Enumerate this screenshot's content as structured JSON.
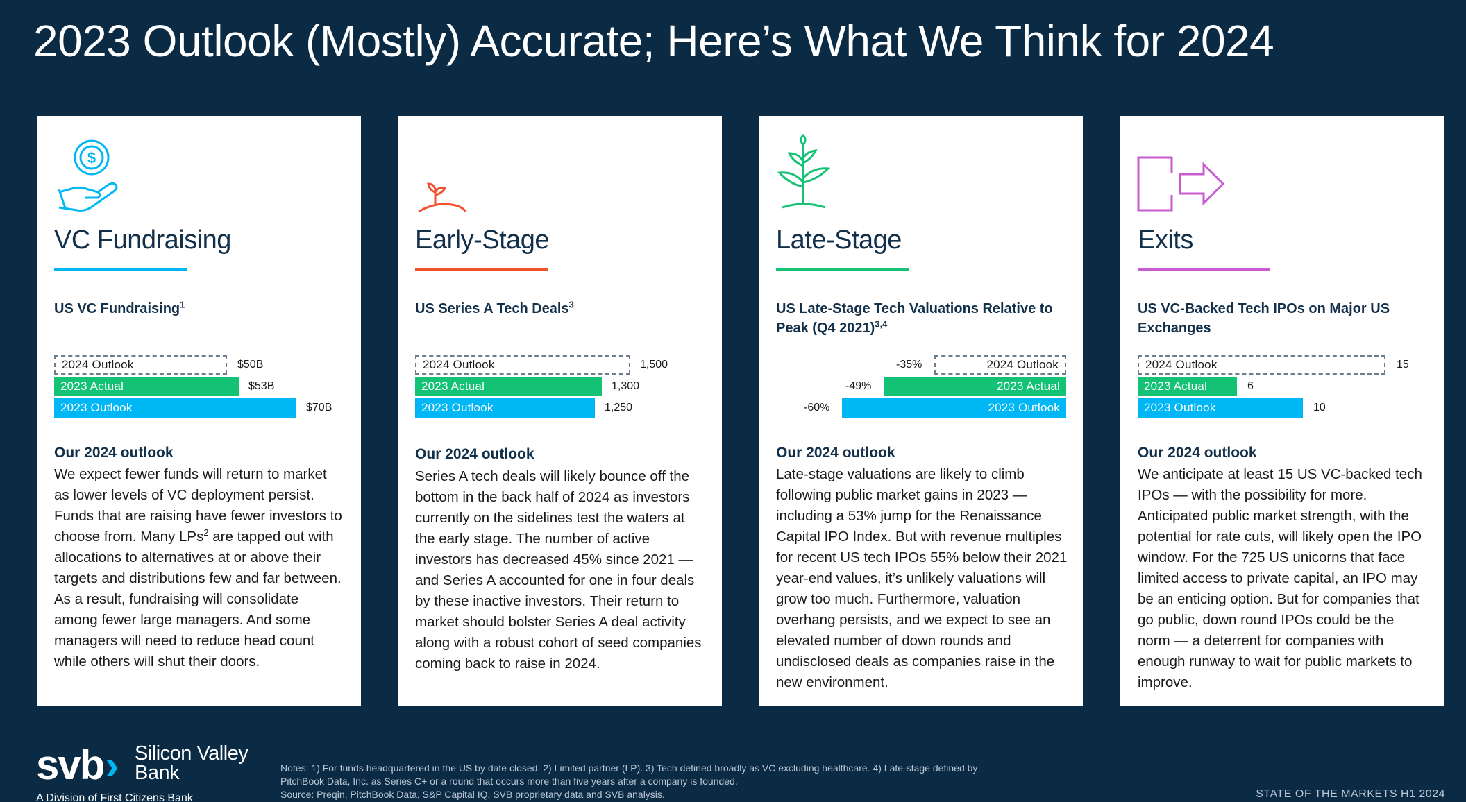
{
  "title": "2023 Outlook (Mostly) Accurate; Here’s What We Think for 2024",
  "colors": {
    "background": "#0b2b45",
    "vc": "#00b7f5",
    "early": "#f0502d",
    "late": "#13c275",
    "exits": "#c85ad2"
  },
  "cards": [
    {
      "icon": "money-hand-icon",
      "heading": "VC Fundraising",
      "chart_title": "US VC Fundraising",
      "chart_sup": "1",
      "bars": [
        {
          "label": "2024 Outlook",
          "value": "$50B"
        },
        {
          "label": "2023 Actual",
          "value": "$53B"
        },
        {
          "label": "2023 Outlook",
          "value": "$70B"
        }
      ],
      "outlook_head": "Our 2024 outlook",
      "outlook_pre": "We expect fewer funds will return to market as lower levels of VC deployment persist. Funds that are raising have fewer investors to choose from. Many LPs",
      "outlook_sup": "2",
      "outlook_post": " are tapped out with allocations to alternatives at or above their targets and distributions few and far between. As a result, fundraising will consolidate among fewer large managers. And some managers will need to reduce head count while others will shut their doors."
    },
    {
      "icon": "sprout-icon",
      "heading": "Early-Stage",
      "chart_title": "US Series A Tech Deals",
      "chart_sup": "3",
      "bars": [
        {
          "label": "2024 Outlook",
          "value": "1,500"
        },
        {
          "label": "2023 Actual",
          "value": "1,300"
        },
        {
          "label": "2023 Outlook",
          "value": "1,250"
        }
      ],
      "outlook_head": "Our 2024 outlook",
      "outlook_body": "Series A tech deals will likely bounce off the bottom in the back half of 2024 as investors currently on the sidelines test the waters at the early stage. The number of active investors has decreased 45% since 2021 — and Series A accounted for one in four deals by these inactive investors. Their return to market should bolster Series A deal activity along with a robust cohort of seed companies coming back to raise in 2024."
    },
    {
      "icon": "plant-icon",
      "heading": "Late-Stage",
      "chart_title": "US Late-Stage Tech Valuations Relative to Peak (Q4 2021)",
      "chart_sup": "3,4",
      "bars": [
        {
          "label": "2024 Outlook",
          "value": "-35%"
        },
        {
          "label": "2023 Actual",
          "value": "-49%"
        },
        {
          "label": "2023 Outlook",
          "value": "-60%"
        }
      ],
      "outlook_head": "Our 2024 outlook",
      "outlook_body": "Late-stage valuations are likely to climb following public market gains in 2023 — including a 53% jump for the Renaissance Capital IPO Index. But with revenue multiples for recent US tech IPOs 55% below their 2021 year-end values, it’s unlikely valuations will grow too much. Furthermore, valuation overhang persists, and we expect to see an elevated number of down rounds and undisclosed deals as companies raise in the new environment."
    },
    {
      "icon": "exit-arrow-icon",
      "heading": "Exits",
      "chart_title": "US VC-Backed Tech IPOs on Major US Exchanges",
      "chart_sup": "",
      "bars": [
        {
          "label": "2024 Outlook",
          "value": "15"
        },
        {
          "label": "2023 Actual",
          "value": "6"
        },
        {
          "label": "2023 Outlook",
          "value": "10"
        }
      ],
      "outlook_head": "Our 2024 outlook",
      "outlook_body": "We anticipate at least 15 US VC-backed tech IPOs — with the possibility for more. Anticipated public market strength, with the potential for rate cuts, will likely open the IPO window. For the 725 US unicorns that face limited access to private capital, an IPO may be an enticing option. But for companies that go public, down round IPOs could be the norm — a deterrent for companies with enough runway to wait for public markets to improve."
    }
  ],
  "chart_data": [
    {
      "type": "bar",
      "title": "US VC Fundraising",
      "categories": [
        "2024 Outlook",
        "2023 Actual",
        "2023 Outlook"
      ],
      "values": [
        50,
        53,
        70
      ],
      "unit": "$B"
    },
    {
      "type": "bar",
      "title": "US Series A Tech Deals",
      "categories": [
        "2024 Outlook",
        "2023 Actual",
        "2023 Outlook"
      ],
      "values": [
        1500,
        1300,
        1250
      ]
    },
    {
      "type": "bar",
      "title": "US Late-Stage Tech Valuations Relative to Peak (Q4 2021)",
      "categories": [
        "2024 Outlook",
        "2023 Actual",
        "2023 Outlook"
      ],
      "values": [
        -35,
        -49,
        -60
      ],
      "unit": "%"
    },
    {
      "type": "bar",
      "title": "US VC-Backed Tech IPOs on Major US Exchanges",
      "categories": [
        "2024 Outlook",
        "2023 Actual",
        "2023 Outlook"
      ],
      "values": [
        15,
        6,
        10
      ]
    }
  ],
  "logo": {
    "mark": "svb",
    "name": "Silicon Valley Bank",
    "sub": "A Division of First Citizens Bank"
  },
  "notes": {
    "line1": "Notes: 1) For funds headquartered in the US by date closed. 2) Limited partner (LP). 3) Tech defined broadly as VC excluding healthcare. 4) Late-stage defined by PitchBook Data, Inc. as Series C+ or a round that occurs more than five years after a company is founded.",
    "source": "Source: Preqin, PitchBook Data, S&P Capital IQ, SVB proprietary data and SVB analysis."
  },
  "footer": "STATE OF THE MARKETS H1 2024"
}
